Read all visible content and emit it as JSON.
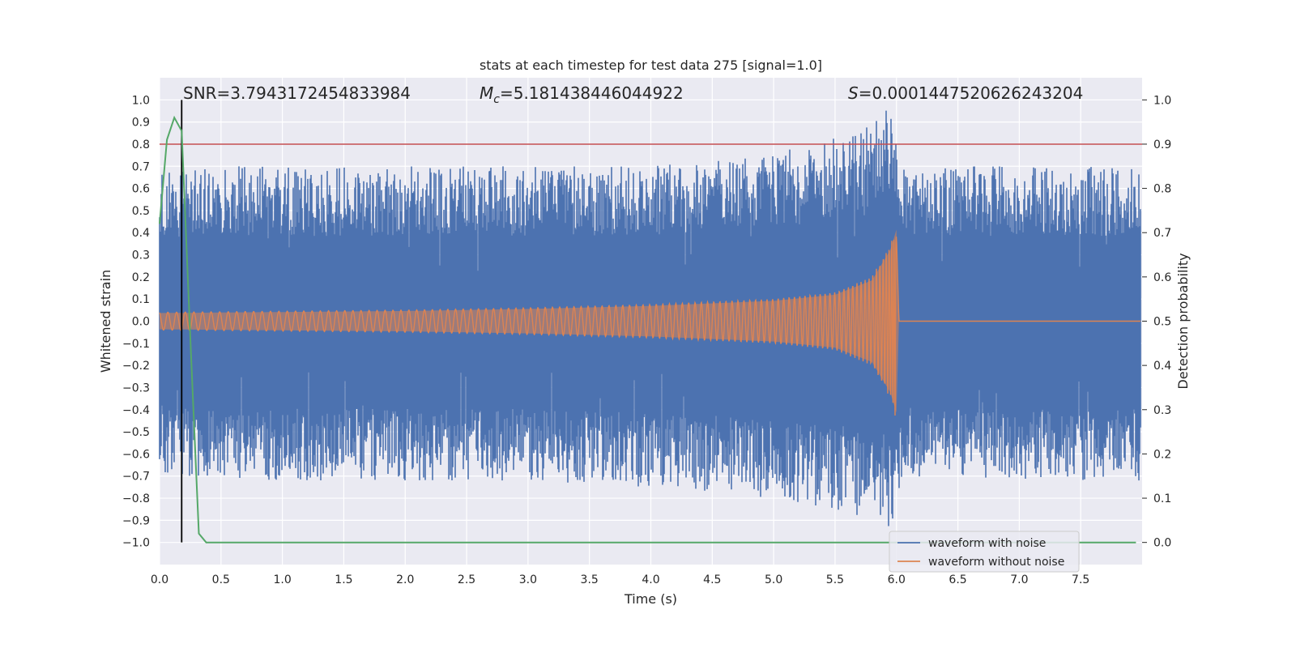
{
  "chart_data": {
    "type": "line",
    "title": "stats at each timestep for test data 275 [signal=1.0]",
    "xlabel": "Time (s)",
    "ylabel": "Whitened strain",
    "ylabel_right": "Detection probability",
    "xlim": [
      0.0,
      8.0
    ],
    "ylim": [
      -1.1,
      1.1
    ],
    "ylim_right": [
      -0.05,
      1.05
    ],
    "x_ticks": [
      0.0,
      0.5,
      1.0,
      1.5,
      2.0,
      2.5,
      3.0,
      3.5,
      4.0,
      4.5,
      5.0,
      5.5,
      6.0,
      6.5,
      7.0,
      7.5
    ],
    "x_tick_labels": [
      "0.0",
      "0.5",
      "1.0",
      "1.5",
      "2.0",
      "2.5",
      "3.0",
      "3.5",
      "4.0",
      "4.5",
      "5.0",
      "5.5",
      "6.0",
      "6.5",
      "7.0",
      "7.5"
    ],
    "y_ticks": [
      -1.0,
      -0.9,
      -0.8,
      -0.7,
      -0.6,
      -0.5,
      -0.4,
      -0.3,
      -0.2,
      -0.1,
      0.0,
      0.1,
      0.2,
      0.3,
      0.4,
      0.5,
      0.6,
      0.7,
      0.8,
      0.9,
      1.0
    ],
    "y_tick_labels": [
      "−1.0",
      "−0.9",
      "−0.8",
      "−0.7",
      "−0.6",
      "−0.5",
      "−0.4",
      "−0.3",
      "−0.2",
      "−0.1",
      "0.0",
      "0.1",
      "0.2",
      "0.3",
      "0.4",
      "0.5",
      "0.6",
      "0.7",
      "0.8",
      "0.9",
      "1.0"
    ],
    "y_ticks_right": [
      0.0,
      0.1,
      0.2,
      0.3,
      0.4,
      0.5,
      0.6,
      0.7,
      0.8,
      0.9,
      1.0
    ],
    "y_tick_labels_right": [
      "0.0",
      "0.1",
      "0.2",
      "0.3",
      "0.4",
      "0.5",
      "0.6",
      "0.7",
      "0.8",
      "0.9",
      "1.0"
    ],
    "grid": true,
    "annotations": {
      "snr": "SNR=3.7943172454833984",
      "mc_symbol": "M",
      "mc_subscript": "c",
      "mc_value": "=5.181438446044922",
      "s_symbol": "S",
      "s_value": "=0.0001447520626243204"
    },
    "threshold": {
      "y_right": 0.9,
      "color": "#c44e52"
    },
    "marker_line": {
      "x": 0.18,
      "color": "#000000"
    },
    "merger_time": 6.0,
    "series": [
      {
        "name": "waveform with noise",
        "color": "#4c72b0",
        "description": "whitened strain with noise, roughly ±0.65 envelope with peaks to ±1.0 near 6.0 s",
        "envelope_x": [
          0.0,
          0.5,
          1.0,
          2.0,
          3.0,
          4.0,
          5.0,
          5.5,
          5.8,
          6.0,
          6.05,
          7.0,
          7.95
        ],
        "envelope_upper": [
          0.68,
          0.7,
          0.7,
          0.7,
          0.7,
          0.7,
          0.75,
          0.85,
          0.9,
          1.0,
          0.7,
          0.7,
          0.7
        ],
        "envelope_lower": [
          -0.68,
          -0.72,
          -0.72,
          -0.72,
          -0.72,
          -0.75,
          -0.8,
          -0.85,
          -0.9,
          -0.95,
          -0.7,
          -0.72,
          -0.72
        ]
      },
      {
        "name": "waveform without noise",
        "color": "#dd8452",
        "description": "chirp signal amplitude growing to merger at 6.0 s",
        "envelope_x": [
          0.0,
          1.0,
          2.0,
          3.0,
          4.0,
          5.0,
          5.5,
          5.8,
          5.95,
          6.0,
          6.02,
          7.95
        ],
        "amplitude": [
          0.04,
          0.045,
          0.05,
          0.06,
          0.075,
          0.1,
          0.13,
          0.2,
          0.35,
          0.45,
          0.0,
          0.0
        ]
      },
      {
        "name": "Detection probability",
        "color": "#55a868",
        "axis": "right",
        "x": [
          0.0,
          0.06,
          0.12,
          0.18,
          0.26,
          0.32,
          0.38,
          0.5,
          1.0,
          2.0,
          3.0,
          4.0,
          5.0,
          6.0,
          7.0,
          7.95
        ],
        "values": [
          0.72,
          0.91,
          0.96,
          0.93,
          0.4,
          0.02,
          0.0,
          0.0,
          0.0,
          0.0,
          0.0,
          0.0,
          0.0,
          0.0,
          0.0,
          0.0
        ]
      }
    ],
    "legend": {
      "placement": "lower-right",
      "entries": [
        {
          "label": "waveform with noise",
          "color": "#4c72b0"
        },
        {
          "label": "waveform without noise",
          "color": "#dd8452"
        }
      ]
    }
  }
}
